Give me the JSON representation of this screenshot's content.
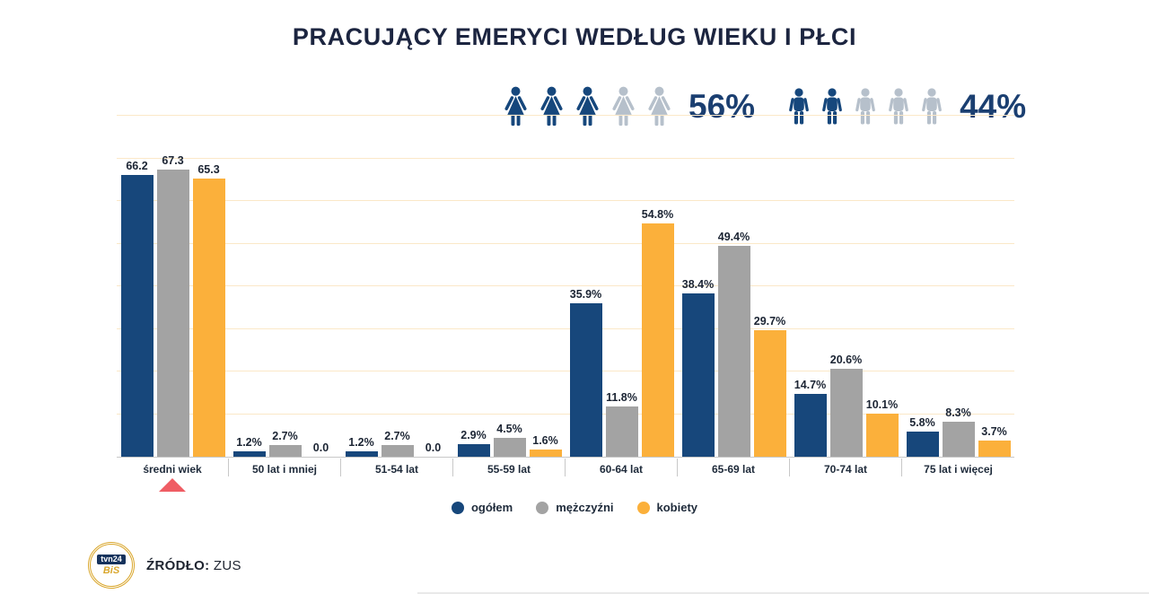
{
  "title": "PRACUJĄCY EMERYCI WEDŁUG WIEKU I PŁCI",
  "gender_share": {
    "female": {
      "percent": "56%",
      "filled": 3,
      "total": 5
    },
    "male": {
      "percent": "44%",
      "filled": 2,
      "total": 5
    },
    "filled_color": "#16477c",
    "empty_color": "#b6c0cb"
  },
  "chart_data": {
    "type": "bar",
    "title": "PRACUJĄCY EMERYCI WEDŁUG WIEKU I PŁCI",
    "categories": [
      "średni wiek",
      "50 lat i mniej",
      "51-54 lat",
      "55-59 lat",
      "60-64 lat",
      "65-69 lat",
      "70-74 lat",
      "75 lat i więcej"
    ],
    "series": [
      {
        "name": "ogółem",
        "key": "ogolem",
        "color": "#17477b",
        "values": [
          66.2,
          1.2,
          1.2,
          2.9,
          35.9,
          38.4,
          14.7,
          5.8
        ],
        "labels": [
          "66.2",
          "1.2%",
          "1.2%",
          "2.9%",
          "35.9%",
          "38.4%",
          "14.7%",
          "5.8%"
        ]
      },
      {
        "name": "mężczyźni",
        "key": "mezczyzni",
        "color": "#a3a3a3",
        "values": [
          67.3,
          2.7,
          2.7,
          4.5,
          11.8,
          49.4,
          20.6,
          8.3
        ],
        "labels": [
          "67.3",
          "2.7%",
          "2.7%",
          "4.5%",
          "11.8%",
          "49.4%",
          "20.6%",
          "8.3%"
        ]
      },
      {
        "name": "kobiety",
        "key": "kobiety",
        "color": "#fbb03b",
        "values": [
          65.3,
          0.0,
          0.0,
          1.6,
          54.8,
          29.7,
          10.1,
          3.7
        ],
        "labels": [
          "65.3",
          "0.0",
          "0.0",
          "1.6%",
          "54.8%",
          "29.7%",
          "10.1%",
          "3.7%"
        ]
      }
    ],
    "ylim": [
      0,
      80
    ],
    "grid": true,
    "gridline_step": 10,
    "gridline_color": "#fbe8c8",
    "legend_position": "bottom"
  },
  "marker": {
    "shape": "triangle-up",
    "color": "#ef5d64",
    "category": "średni wiek"
  },
  "footer": {
    "source_label": "ŹRÓDŁO:",
    "source_value": "ZUS",
    "logo": {
      "line1": "tvn24",
      "line2": "BiS"
    }
  }
}
